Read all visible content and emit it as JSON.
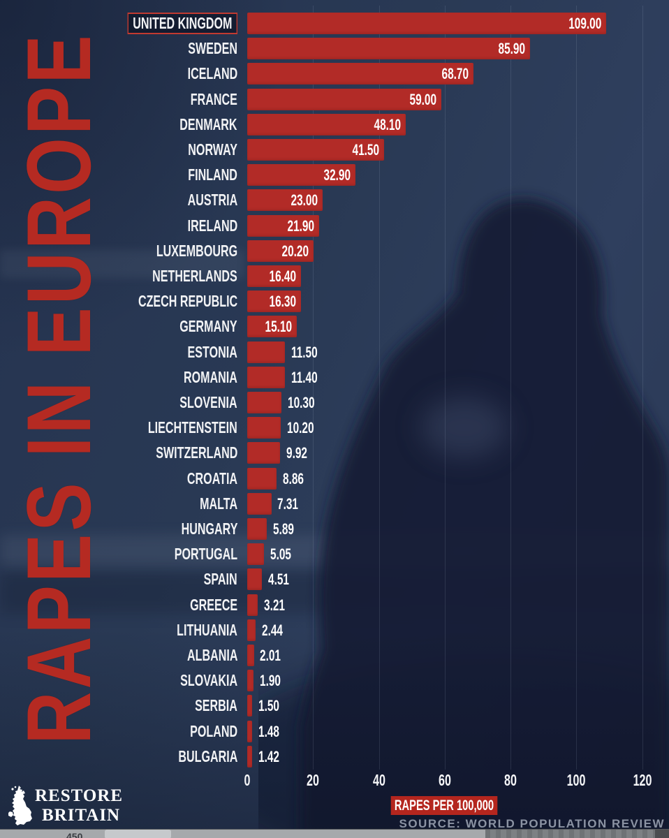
{
  "title": "RAPES IN EUROPE",
  "chart_data": {
    "type": "bar",
    "orientation": "horizontal",
    "title": "RAPES IN EUROPE",
    "xlabel": "RAPES PER 100,000",
    "xlim": [
      0,
      120
    ],
    "xticks": [
      0,
      20,
      40,
      60,
      80,
      100,
      120
    ],
    "grid": "vertical-faint",
    "legend": "none",
    "highlight_category": "UNITED KINGDOM",
    "categories": [
      "UNITED KINGDOM",
      "SWEDEN",
      "ICELAND",
      "FRANCE",
      "DENMARK",
      "NORWAY",
      "FINLAND",
      "AUSTRIA",
      "IRELAND",
      "LUXEMBOURG",
      "NETHERLANDS",
      "CZECH REPUBLIC",
      "GERMANY",
      "ESTONIA",
      "ROMANIA",
      "SLOVENIA",
      "LIECHTENSTEIN",
      "SWITZERLAND",
      "CROATIA",
      "MALTA",
      "HUNGARY",
      "PORTUGAL",
      "SPAIN",
      "GREECE",
      "LITHUANIA",
      "ALBANIA",
      "SLOVAKIA",
      "SERBIA",
      "POLAND",
      "BULGARIA"
    ],
    "values": [
      109.0,
      85.9,
      68.7,
      59.0,
      48.1,
      41.5,
      32.9,
      23.0,
      21.9,
      20.2,
      16.4,
      16.3,
      15.1,
      11.5,
      11.4,
      10.3,
      10.2,
      9.92,
      8.86,
      7.31,
      5.89,
      5.05,
      4.51,
      3.21,
      2.44,
      2.01,
      1.9,
      1.5,
      1.48,
      1.42
    ]
  },
  "source": {
    "text": "SOURCE: WORLD POPULATION REVIEW"
  },
  "logo": {
    "line1": "RESTORE",
    "line2": "BRITAIN",
    "icon": "great-britain-map-icon"
  },
  "bottom_strip": {
    "partial_text": "450"
  },
  "colors": {
    "background": "#2a3854",
    "bar": "#b22b27",
    "title_text": "#b52a22",
    "caption_bg": "#b4261e",
    "highlight_border": "#c23a30",
    "label_text": "#f2f3f5",
    "source_text": "#8b93a3",
    "silhouette": "#131c35"
  }
}
